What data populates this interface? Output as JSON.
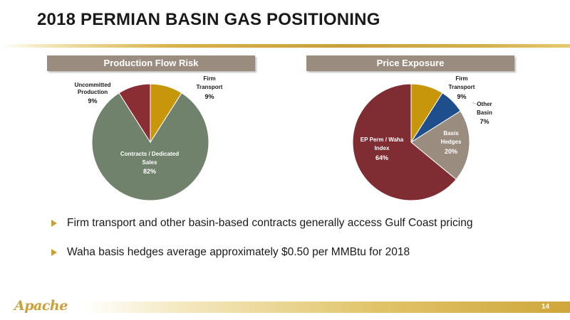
{
  "slide": {
    "title": "2018 PERMIAN BASIN GAS POSITIONING",
    "page_number": "14",
    "logo_text": "Apache"
  },
  "panels": {
    "left_header": "Production Flow Risk",
    "right_header": "Price Exposure"
  },
  "bullets": [
    "Firm transport and other basin-based contracts generally access Gulf Coast pricing",
    "Waha basis hedges average approximately $0.50 per MMBtu for 2018"
  ],
  "colors": {
    "header_bg": "#9b8c80",
    "accent_gold": "#c9a03a",
    "title_text": "#1a1a1a"
  },
  "chart_data": [
    {
      "type": "pie",
      "title": "Production Flow Risk",
      "slices": [
        {
          "label": "Firm Transport",
          "value": 9,
          "value_label": "9%",
          "color": "#c7960b"
        },
        {
          "label": "Contracts / Dedicated Sales",
          "value": 82,
          "value_label": "82%",
          "color": "#70826b"
        },
        {
          "label": "Uncommitted Production",
          "value": 9,
          "value_label": "9%",
          "color": "#8b2e33"
        }
      ]
    },
    {
      "type": "pie",
      "title": "Price Exposure",
      "slices": [
        {
          "label": "Firm Transport",
          "value": 9,
          "value_label": "9%",
          "color": "#c7960b"
        },
        {
          "label": "Other Basin",
          "value": 7,
          "value_label": "7%",
          "color": "#1f4e8c"
        },
        {
          "label": "Basis Hedges",
          "value": 20,
          "value_label": "20%",
          "color": "#9b8c80"
        },
        {
          "label": "EP Perm / Waha Index",
          "value": 64,
          "value_label": "64%",
          "color": "#7f2c32"
        }
      ]
    }
  ]
}
